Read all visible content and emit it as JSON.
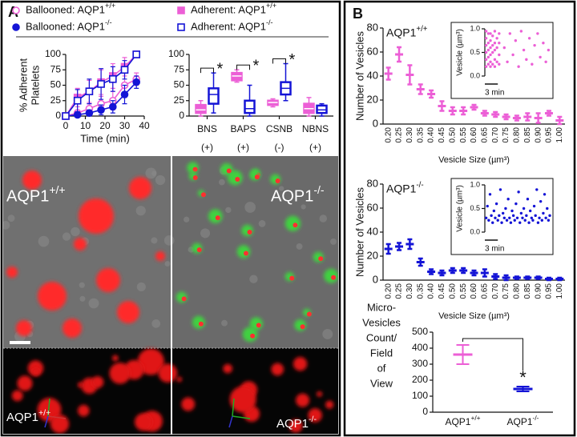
{
  "panels": {
    "a": "A",
    "b": "B"
  },
  "micrograph": {
    "left_label": "AQP1+/+",
    "right_label": "AQP1-/-"
  },
  "render_3d": {
    "left_label": "AQP1+/+",
    "right_label": "AQP1-/-"
  },
  "chart_data": [
    {
      "type": "line",
      "xlabel": "Time (min)",
      "ylabel": [
        "% Adherent",
        "Platelets"
      ],
      "x": [
        0,
        6,
        12,
        18,
        24,
        30,
        36
      ],
      "xlim": [
        0,
        40
      ],
      "xticks": [
        0,
        10,
        20,
        30,
        40
      ],
      "ylim": [
        0,
        100
      ],
      "yticks": [
        0,
        25,
        50,
        75,
        100
      ],
      "series": [
        {
          "name": "Ballooned: AQP1+/+",
          "color": "#ec5fd6",
          "marker": "circle",
          "filled": false,
          "values": [
            0,
            5,
            12,
            20,
            25,
            50,
            60
          ],
          "errors": [
            0,
            5,
            8,
            12,
            15,
            20,
            10
          ]
        },
        {
          "name": "Ballooned: AQP1-/-",
          "color": "#1414d6",
          "marker": "circle",
          "filled": true,
          "values": [
            0,
            2,
            5,
            10,
            15,
            35,
            55
          ],
          "errors": [
            0,
            3,
            5,
            8,
            10,
            15,
            10
          ]
        },
        {
          "name": "Adherent: AQP1+/+",
          "color": "#ec5fd6",
          "marker": "square",
          "filled": true,
          "values": [
            0,
            30,
            40,
            55,
            65,
            80,
            100
          ],
          "errors": [
            0,
            15,
            18,
            20,
            20,
            15,
            0
          ]
        },
        {
          "name": "Adherent: AQP1-/-",
          "color": "#1414d6",
          "marker": "square",
          "filled": false,
          "values": [
            0,
            25,
            40,
            52,
            60,
            75,
            100
          ],
          "errors": [
            0,
            18,
            20,
            25,
            20,
            15,
            0
          ]
        }
      ]
    },
    {
      "type": "box",
      "categories": [
        "BNS",
        "BAPS",
        "CSNB",
        "NBNS"
      ],
      "category_notes": [
        "(+)",
        "(+)",
        "(-)",
        "(+)"
      ],
      "ylim": [
        0,
        100
      ],
      "yticks": [
        0,
        25,
        50,
        75,
        100
      ],
      "significance": [
        "*",
        "*",
        "*",
        null
      ],
      "series": [
        {
          "color": "#ec5fd6",
          "filled": true,
          "boxes": [
            {
              "min": 0,
              "q1": 5,
              "median": 10,
              "q3": 18,
              "max": 25
            },
            {
              "min": 55,
              "q1": 58,
              "median": 65,
              "q3": 70,
              "max": 75
            },
            {
              "min": 15,
              "q1": 18,
              "median": 22,
              "q3": 25,
              "max": 28
            },
            {
              "min": 0,
              "q1": 5,
              "median": 12,
              "q3": 20,
              "max": 30
            }
          ]
        },
        {
          "color": "#1414d6",
          "filled": false,
          "boxes": [
            {
              "min": 5,
              "q1": 20,
              "median": 35,
              "q3": 45,
              "max": 70
            },
            {
              "min": 0,
              "q1": 5,
              "median": 12,
              "q3": 25,
              "max": 50
            },
            {
              "min": 25,
              "q1": 35,
              "median": 45,
              "q3": 55,
              "max": 85
            },
            {
              "min": 0,
              "q1": 5,
              "median": 10,
              "q3": 17,
              "max": 20
            }
          ]
        }
      ]
    },
    {
      "type": "errorbar",
      "title": "AQP1+/+",
      "xlabel": "Vesicle Size (µm³)",
      "ylabel": "Number of Vesicles",
      "color": "#ec5fd6",
      "categories": [
        "0.20",
        "0.25",
        "0.30",
        "0.35",
        "0.40",
        "0.45",
        "0.50",
        "0.55",
        "0.60",
        "0.65",
        "0.70",
        "0.75",
        "0.80",
        "0.85",
        "0.90",
        "0.95",
        "1.00"
      ],
      "values": [
        42,
        58,
        41,
        29,
        25,
        15,
        11,
        11,
        14,
        9,
        8,
        6,
        5,
        6,
        5,
        9,
        3
      ],
      "errors": [
        5,
        6,
        8,
        4,
        3,
        4,
        3,
        3,
        2,
        2,
        2,
        2,
        2,
        3,
        4,
        2,
        3
      ],
      "ylim": [
        0,
        80
      ],
      "yticks": [
        0,
        20,
        40,
        60,
        80
      ],
      "inset": {
        "type": "scatter",
        "ylabel": "Vesicle (µm³)",
        "color": "#ec5fd6",
        "xlim": [
          0,
          15
        ],
        "ylim": [
          0,
          1
        ],
        "yticks": [
          {
            "value": 0,
            "label": "0.0"
          },
          {
            "value": 0.5,
            "label": "0.5"
          },
          {
            "value": 1,
            "label": "1.0"
          }
        ],
        "scalebar": {
          "value": 3,
          "label": "3 min"
        },
        "x": [
          0.3,
          0.3,
          0.3,
          0.3,
          0.3,
          0.3,
          0.8,
          0.8,
          0.8,
          0.8,
          0.8,
          1.3,
          1.3,
          1.3,
          1.3,
          1.3,
          1.3,
          1.8,
          1.8,
          1.8,
          1.8,
          2.3,
          2.3,
          2.3,
          2.3,
          2.3,
          2.8,
          2.8,
          2.8,
          3.3,
          3.3,
          3.3,
          3.3,
          4.5,
          5.2,
          5.8,
          6.5,
          7.1,
          7.8,
          8.4,
          9.0,
          9.6,
          10.3,
          10.9,
          11.5,
          12.2,
          12.8,
          13.5,
          14.1,
          14.7
        ],
        "y": [
          0.2,
          0.35,
          0.5,
          0.65,
          0.8,
          0.95,
          0.25,
          0.4,
          0.55,
          0.7,
          0.9,
          0.2,
          0.3,
          0.45,
          0.6,
          0.75,
          0.9,
          0.25,
          0.5,
          0.65,
          0.85,
          0.2,
          0.35,
          0.55,
          0.7,
          0.95,
          0.3,
          0.6,
          0.8,
          0.25,
          0.45,
          0.7,
          0.9,
          0.6,
          0.3,
          0.9,
          0.45,
          0.75,
          0.2,
          0.95,
          0.55,
          0.35,
          0.8,
          0.25,
          0.65,
          0.9,
          0.4,
          0.7,
          0.3,
          0.55
        ]
      }
    },
    {
      "type": "errorbar",
      "title": "AQP1-/-",
      "xlabel": "Vesicle Size (µm³)",
      "ylabel": "Number of Vesicles",
      "color": "#1414d6",
      "categories": [
        "0.20",
        "0.25",
        "0.30",
        "0.35",
        "0.40",
        "0.45",
        "0.50",
        "0.55",
        "0.60",
        "0.65",
        "0.70",
        "0.75",
        "0.80",
        "0.85",
        "0.90",
        "0.95",
        "1.00"
      ],
      "values": [
        26,
        28,
        30,
        15,
        7,
        6,
        8,
        8,
        6,
        6,
        3,
        2,
        2,
        2,
        2,
        1,
        1
      ],
      "errors": [
        4,
        3,
        4,
        3,
        2,
        2,
        2,
        2,
        2,
        3,
        2,
        2,
        1,
        1,
        1,
        1,
        1
      ],
      "ylim": [
        0,
        80
      ],
      "yticks": [
        0,
        20,
        40,
        60,
        80
      ],
      "inset": {
        "type": "scatter",
        "ylabel": "Vesicle (µm³)",
        "color": "#1414d6",
        "xlim": [
          0,
          15
        ],
        "ylim": [
          0,
          1
        ],
        "yticks": [
          {
            "value": 0,
            "label": "0.0"
          },
          {
            "value": 0.5,
            "label": "0.5"
          },
          {
            "value": 1,
            "label": "1.0"
          }
        ],
        "scalebar": {
          "value": 3,
          "label": "3 min"
        },
        "x": [
          0.3,
          0.6,
          0.9,
          1.2,
          1.5,
          1.8,
          2.1,
          2.4,
          2.7,
          3.0,
          3.3,
          3.6,
          3.9,
          4.2,
          4.5,
          4.8,
          5.1,
          5.4,
          5.7,
          6.0,
          6.3,
          6.6,
          6.9,
          7.2,
          7.5,
          7.8,
          8.1,
          8.4,
          8.7,
          9.0,
          9.3,
          9.6,
          9.9,
          10.2,
          10.5,
          10.8,
          11.1,
          11.4,
          11.7,
          12.0,
          12.3,
          12.6,
          12.9,
          13.2,
          13.5,
          13.8,
          14.1,
          14.4,
          14.7,
          15.0
        ],
        "y": [
          0.3,
          0.55,
          0.25,
          0.8,
          0.35,
          0.2,
          0.45,
          0.3,
          0.6,
          0.25,
          0.35,
          0.9,
          0.2,
          0.4,
          0.3,
          0.5,
          0.25,
          0.7,
          0.3,
          0.2,
          0.45,
          0.35,
          0.25,
          0.6,
          0.3,
          0.85,
          0.2,
          0.4,
          0.3,
          0.5,
          0.25,
          0.35,
          0.7,
          0.2,
          0.45,
          0.3,
          0.25,
          0.55,
          0.35,
          0.9,
          0.2,
          0.3,
          0.65,
          0.25,
          0.4,
          0.8,
          0.3,
          0.5,
          0.25,
          0.35
        ]
      }
    },
    {
      "type": "mean-error",
      "ylabel": [
        "Micro-",
        "Vesicles",
        "Count/",
        "Field",
        "of",
        "View"
      ],
      "categories": [
        "AQP1+/+",
        "AQP1-/-"
      ],
      "colors": [
        "#ec5fd6",
        "#1414d6"
      ],
      "values": [
        360,
        145
      ],
      "errors": [
        60,
        15
      ],
      "ylim": [
        0,
        500
      ],
      "yticks": [
        0,
        100,
        200,
        300,
        400,
        500
      ],
      "significance": [
        null,
        "*"
      ]
    }
  ]
}
